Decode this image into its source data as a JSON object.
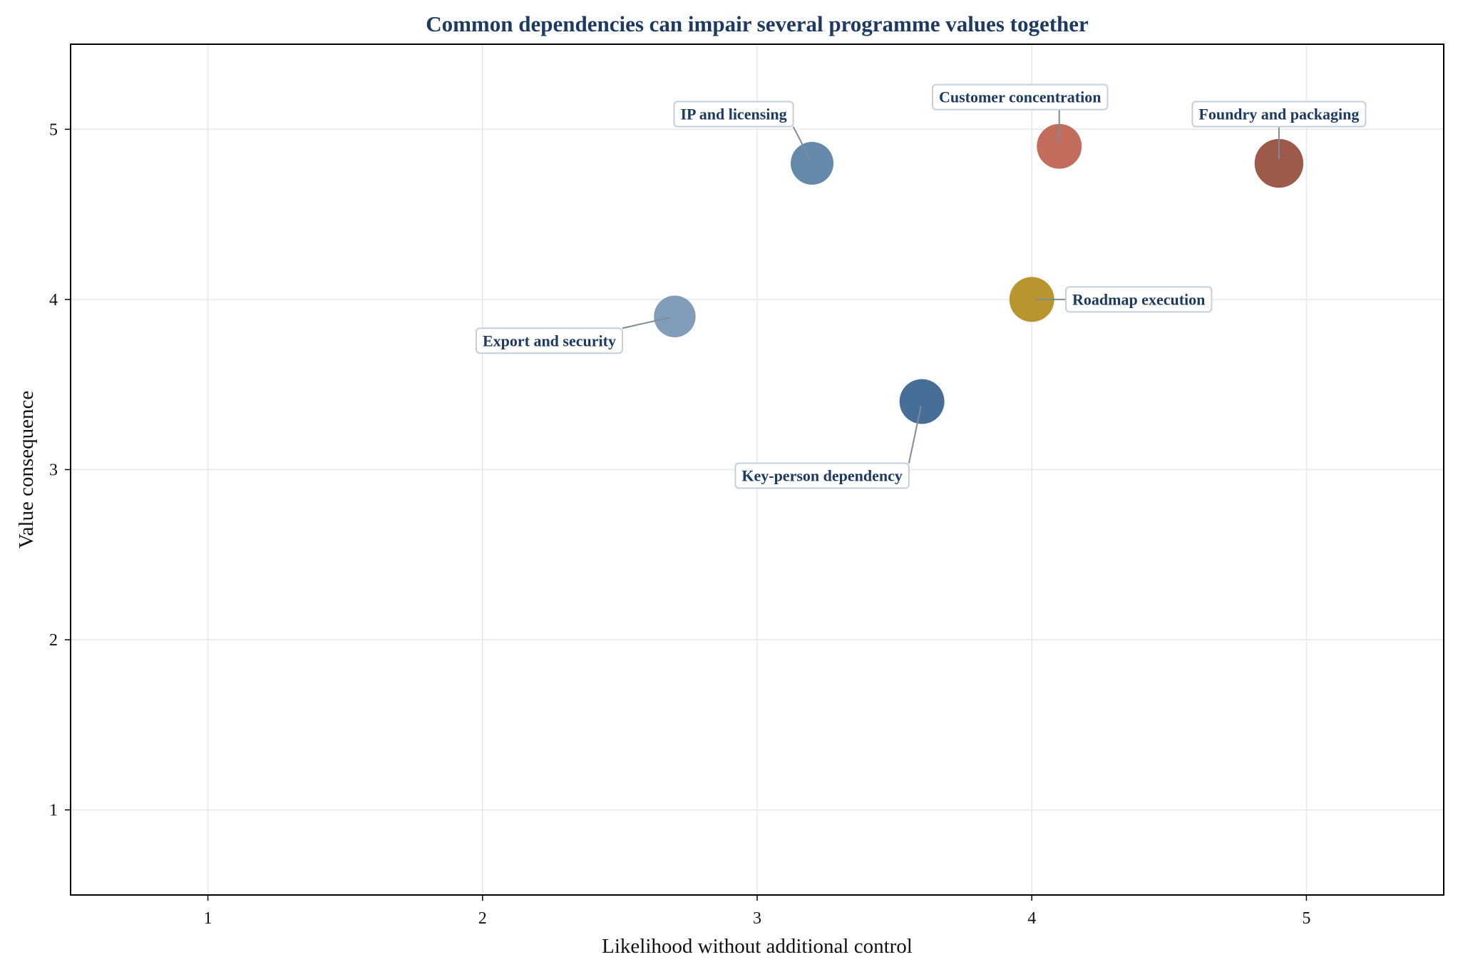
{
  "chart_data": {
    "type": "scatter",
    "title": "Common dependencies can impair several programme values together",
    "xlabel": "Likelihood without additional control",
    "ylabel": "Value consequence",
    "xlim": [
      0.5,
      5.5
    ],
    "ylim": [
      0.5,
      5.5
    ],
    "xticks": [
      1,
      2,
      3,
      4,
      5
    ],
    "yticks": [
      1,
      2,
      3,
      4,
      5
    ],
    "grid": true,
    "legend": "none",
    "points": [
      {
        "label": "IP and licensing",
        "x": 3.2,
        "y": 4.8,
        "size": 1.0,
        "color": "#5c83a6"
      },
      {
        "label": "Customer concentration",
        "x": 4.1,
        "y": 4.9,
        "size": 1.1,
        "color": "#bf6452"
      },
      {
        "label": "Foundry and packaging",
        "x": 4.9,
        "y": 4.8,
        "size": 1.3,
        "color": "#98503f"
      },
      {
        "label": "Roadmap execution",
        "x": 4.0,
        "y": 4.0,
        "size": 1.1,
        "color": "#b58f24"
      },
      {
        "label": "Export and security",
        "x": 2.7,
        "y": 3.9,
        "size": 0.95,
        "color": "#7b98b6"
      },
      {
        "label": "Key-person dependency",
        "x": 3.6,
        "y": 3.4,
        "size": 1.1,
        "color": "#3d6690"
      }
    ]
  },
  "colors": {
    "title": "#1d3a63",
    "annotation_text": "#1d3a63",
    "annotation_border": "#c3cfdb",
    "leader_line": "#7d8b99",
    "grid": "#e5e8ec",
    "axis": "#000000"
  }
}
